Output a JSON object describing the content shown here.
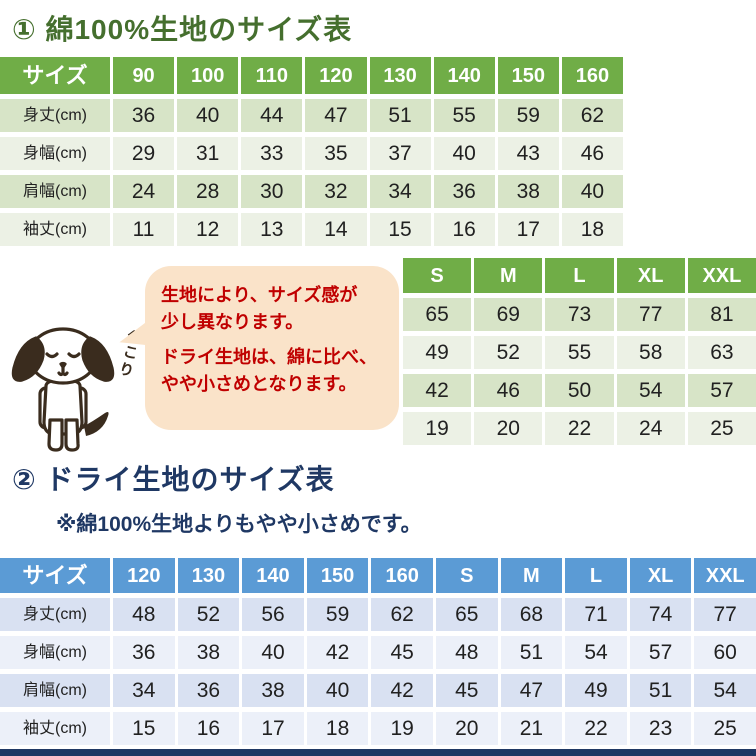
{
  "section1": {
    "title": "① 綿100%生地のサイズ表",
    "table": {
      "has_label": true,
      "header": [
        "サイズ",
        "90",
        "100",
        "110",
        "120",
        "130",
        "140",
        "150",
        "160"
      ],
      "rows": [
        [
          "身丈(cm)",
          "36",
          "40",
          "44",
          "47",
          "51",
          "55",
          "59",
          "62"
        ],
        [
          "身幅(cm)",
          "29",
          "31",
          "33",
          "35",
          "37",
          "40",
          "43",
          "46"
        ],
        [
          "肩幅(cm)",
          "24",
          "28",
          "30",
          "32",
          "34",
          "36",
          "38",
          "40"
        ],
        [
          "袖丈(cm)",
          "11",
          "12",
          "13",
          "14",
          "15",
          "16",
          "17",
          "18"
        ]
      ]
    },
    "sub_table": {
      "has_label": false,
      "header": [
        "S",
        "M",
        "L",
        "XL",
        "XXL"
      ],
      "rows": [
        [
          "65",
          "69",
          "73",
          "77",
          "81"
        ],
        [
          "49",
          "52",
          "55",
          "58",
          "63"
        ],
        [
          "42",
          "46",
          "50",
          "54",
          "57"
        ],
        [
          "19",
          "20",
          "22",
          "24",
          "25"
        ]
      ]
    }
  },
  "callout": {
    "line1": "生地により、サイズ感が",
    "line2": "少し異なります。",
    "line3": "ドライ生地は、綿に比べ、",
    "line4": "やや小さめとなります。",
    "dog_caption": "ぺこり"
  },
  "section2": {
    "title": "② ドライ生地のサイズ表",
    "subtitle": "※綿100%生地よりもやや小さめです。",
    "table": {
      "has_label": true,
      "header": [
        "サイズ",
        "120",
        "130",
        "140",
        "150",
        "160",
        "S",
        "M",
        "L",
        "XL",
        "XXL"
      ],
      "rows": [
        [
          "身丈(cm)",
          "48",
          "52",
          "56",
          "59",
          "62",
          "65",
          "68",
          "71",
          "74",
          "77"
        ],
        [
          "身幅(cm)",
          "36",
          "38",
          "40",
          "42",
          "45",
          "48",
          "51",
          "54",
          "57",
          "60"
        ],
        [
          "肩幅(cm)",
          "34",
          "36",
          "38",
          "40",
          "42",
          "45",
          "47",
          "49",
          "51",
          "54"
        ],
        [
          "袖丈(cm)",
          "15",
          "16",
          "17",
          "18",
          "19",
          "20",
          "21",
          "22",
          "23",
          "25"
        ]
      ]
    }
  },
  "colors": {
    "green_header": "#70AD47",
    "green_row_dark": "#D7E4C7",
    "green_row_light": "#ECF1E5",
    "green_title": "#456F2E",
    "blue_header": "#5B9BD5",
    "blue_row_dark": "#D9E1F2",
    "blue_row_light": "#ECF0F9",
    "navy_title": "#1F3864",
    "bubble_bg": "#FAE3C9",
    "bubble_text": "#C00000",
    "dog_outline": "#3A2C1E"
  }
}
